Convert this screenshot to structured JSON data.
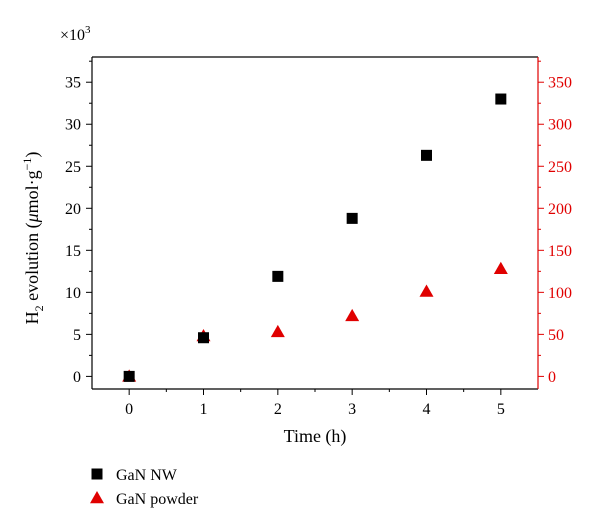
{
  "chart_data": {
    "type": "scatter",
    "x_ticks": [
      0,
      1,
      2,
      3,
      4,
      5
    ],
    "xlim": [
      -0.5,
      5.5
    ],
    "xlabel": "Time (h)",
    "ylabel_left": {
      "main": "H",
      "sub": "2",
      "mid": " evolution (",
      "mu": "μ",
      "after_mu": "mol·g",
      "sup": "−1",
      "end": ")"
    },
    "y_left": {
      "ticks": [
        0,
        5,
        10,
        15,
        20,
        25,
        30,
        35
      ],
      "ylim": [
        -1.5,
        38
      ],
      "multiplier_base": "×10",
      "multiplier_exp": "3",
      "color": "#000000"
    },
    "y_right": {
      "ticks": [
        0,
        50,
        100,
        150,
        200,
        250,
        300,
        350
      ],
      "ylim": [
        -15,
        380
      ],
      "color": "#e00000"
    },
    "series": [
      {
        "name": "GaN NW",
        "marker": "square",
        "color": "#000000",
        "axis": "left",
        "x": [
          0,
          1,
          2,
          3,
          4,
          5
        ],
        "y": [
          0,
          4.6,
          11.9,
          18.8,
          26.3,
          33.0
        ]
      },
      {
        "name": "GaN powder",
        "marker": "triangle",
        "color": "#e00000",
        "axis": "right",
        "x": [
          0,
          1,
          2,
          3,
          4,
          5
        ],
        "y": [
          0,
          48,
          53,
          72,
          101,
          128
        ]
      }
    ],
    "legend_position": "bottom-left"
  }
}
